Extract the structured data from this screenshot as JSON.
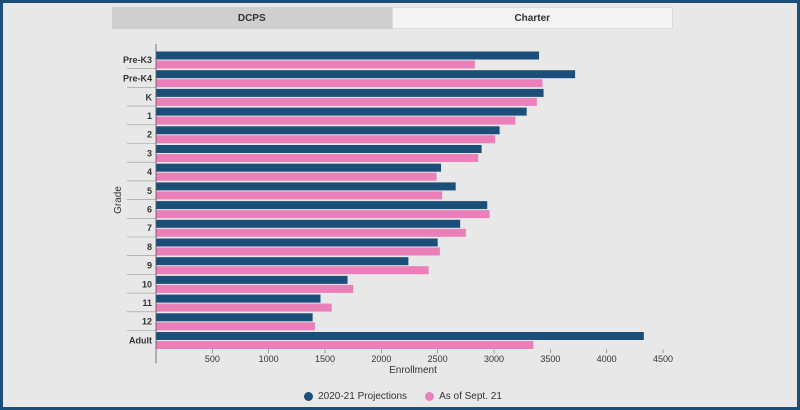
{
  "tabs": [
    {
      "label": "DCPS",
      "active": true
    },
    {
      "label": "Charter",
      "active": false
    }
  ],
  "colors": {
    "series1": "#1b4f7a",
    "series2": "#ea7fb9",
    "frame": "#1b4f7a"
  },
  "chart_data": {
    "type": "bar",
    "orientation": "horizontal",
    "title": "",
    "xlabel": "Enrollment",
    "ylabel": "Grade",
    "categories": [
      "Pre-K3",
      "Pre-K4",
      "K",
      "1",
      "2",
      "3",
      "4",
      "5",
      "6",
      "7",
      "8",
      "9",
      "10",
      "11",
      "12",
      "Adult"
    ],
    "series": [
      {
        "name": "2020-21 Projections",
        "values": [
          3400,
          3720,
          3440,
          3290,
          3050,
          2890,
          2530,
          2660,
          2940,
          2700,
          2500,
          2240,
          1700,
          1460,
          1390,
          4330
        ]
      },
      {
        "name": "As of Sept. 21",
        "values": [
          2830,
          3430,
          3380,
          3190,
          3010,
          2860,
          2490,
          2540,
          2960,
          2750,
          2520,
          2420,
          1750,
          1560,
          1410,
          3350
        ]
      }
    ],
    "xlim": [
      0,
      4500
    ],
    "xticks": [
      500,
      1000,
      1500,
      2000,
      2500,
      3000,
      3500,
      4000,
      4500
    ],
    "grid": false,
    "legend_position": "bottom"
  }
}
